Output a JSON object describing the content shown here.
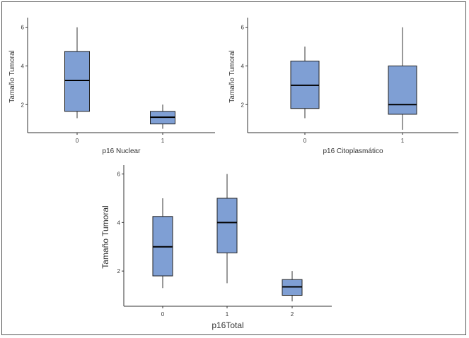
{
  "chart_data": [
    {
      "type": "box",
      "xlabel": "p16 Nuclear",
      "ylabel": "Tamaño Tumoral",
      "categories": [
        "0",
        "1"
      ],
      "yticks": [
        2,
        4,
        6
      ],
      "ylim": [
        0.55,
        6.35
      ],
      "boxes": [
        {
          "min": 1.3,
          "q1": 1.65,
          "median": 3.25,
          "q3": 4.75,
          "max": 6.0
        },
        {
          "min": 0.75,
          "q1": 1.0,
          "median": 1.35,
          "q3": 1.65,
          "max": 2.0
        }
      ],
      "color": "#7f9fd4"
    },
    {
      "type": "box",
      "xlabel": "p16 Citoplasmático",
      "ylabel": "Tamaño Tumoral",
      "categories": [
        "0",
        "1"
      ],
      "yticks": [
        2,
        4,
        6
      ],
      "ylim": [
        0.55,
        6.35
      ],
      "boxes": [
        {
          "min": 1.3,
          "q1": 1.8,
          "median": 3.0,
          "q3": 4.25,
          "max": 5.0
        },
        {
          "min": 0.7,
          "q1": 1.5,
          "median": 2.0,
          "q3": 4.0,
          "max": 6.0
        }
      ],
      "color": "#7f9fd4"
    },
    {
      "type": "box",
      "xlabel": "p16Total",
      "ylabel": "Tamaño Tumoral",
      "categories": [
        "0",
        "1",
        "2"
      ],
      "yticks": [
        2,
        4,
        6
      ],
      "ylim": [
        0.55,
        6.25
      ],
      "boxes": [
        {
          "min": 1.3,
          "q1": 1.8,
          "median": 3.0,
          "q3": 4.25,
          "max": 5.0
        },
        {
          "min": 1.5,
          "q1": 2.75,
          "median": 4.0,
          "q3": 5.0,
          "max": 6.0
        },
        {
          "min": 0.75,
          "q1": 1.0,
          "median": 1.35,
          "q3": 1.65,
          "max": 2.0
        }
      ],
      "color": "#7f9fd4"
    }
  ]
}
